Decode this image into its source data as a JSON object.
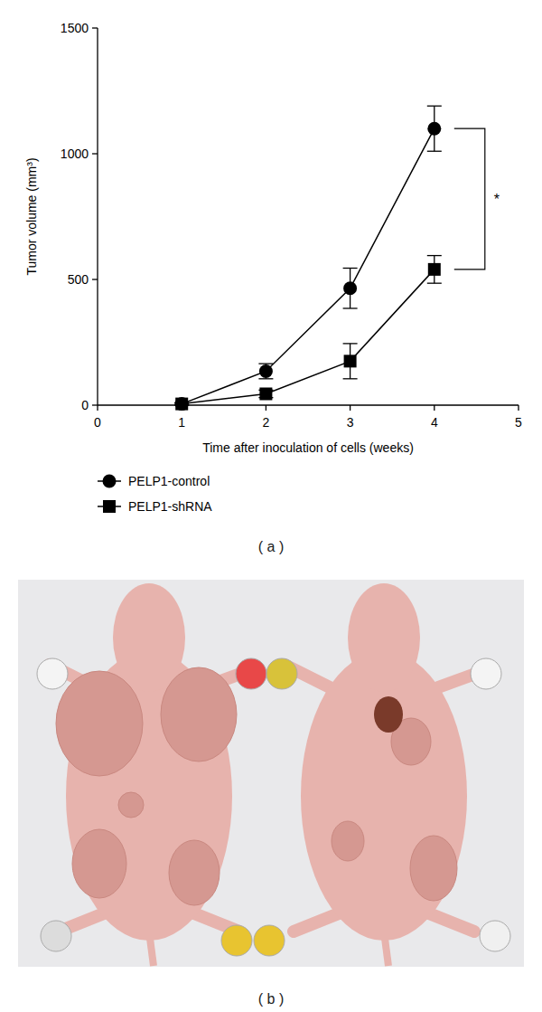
{
  "chart_data": {
    "type": "line",
    "x_label": "Time after inoculation of cells (weeks)",
    "y_label": "Tumor volume (mm³)",
    "x": [
      1,
      2,
      3,
      4
    ],
    "xlim": [
      0,
      5
    ],
    "xticks": [
      0,
      1,
      2,
      3,
      4,
      5
    ],
    "ylim": [
      0,
      1500
    ],
    "yticks": [
      0,
      500,
      1000,
      1500
    ],
    "legend": "bottom",
    "annotations": [
      {
        "text": "*"
      }
    ],
    "series": [
      {
        "name": "PELP1-control",
        "color": "#000000",
        "marker": "circle",
        "line_style": "solid",
        "values": [
          5,
          135,
          465,
          1100
        ],
        "error": [
          5,
          30,
          80,
          90
        ]
      },
      {
        "name": "PELP1-shRNA",
        "color": "#000000",
        "marker": "square",
        "line_style": "solid",
        "values": [
          5,
          45,
          175,
          540
        ],
        "error": [
          3,
          15,
          70,
          55
        ]
      }
    ]
  },
  "panel_labels": [
    "( a )",
    "( b )"
  ]
}
